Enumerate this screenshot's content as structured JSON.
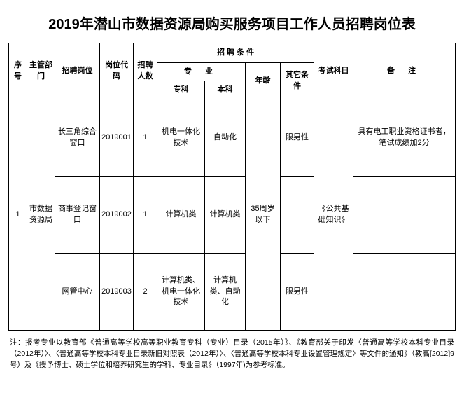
{
  "title": "2019年潜山市数据资源局购买服务项目工作人员招聘岗位表",
  "headers": {
    "seq": "序号",
    "dept": "主管部门",
    "post": "招聘岗位",
    "code": "岗位代码",
    "count": "招聘人数",
    "conditions": "招 聘 条 件",
    "major": "专 业",
    "major_zk": "专科",
    "major_bk": "本科",
    "age": "年龄",
    "other": "其它条件",
    "exam": "考试科目",
    "remark": "备 注"
  },
  "rows": [
    {
      "seq": "1",
      "dept": "市数据资源局",
      "post": "长三角综合窗口",
      "code": "2019001",
      "count": "1",
      "major_zk": "机电一体化技术",
      "major_bk": "自动化",
      "age": "35周岁以下",
      "other": "限男性",
      "exam": "《公共基础知识》",
      "remark": "具有电工职业资格证书者，笔试成绩加2分"
    },
    {
      "post": "商事登记窗口",
      "code": "2019002",
      "count": "1",
      "major_zk": "计算机类",
      "major_bk": "计算机类",
      "other": "",
      "remark": ""
    },
    {
      "post": "网管中心",
      "code": "2019003",
      "count": "2",
      "major_zk": "计算机类、机电一体化技术",
      "major_bk": "计算机类、自动化",
      "other": "限男性",
      "remark": ""
    }
  ],
  "footnote": "注：报考专业以教育部《普通高等学校高等职业教育专科（专业）目录（2015年）》、《教育部关于印发〈普通高等学校本科专业目录（2012年）〉、〈普通高等学校本科专业目录新旧对照表（2012年）〉、〈普通高等学校本科专业设置管理规定〉等文件的通知》（教高[2012]9号）及《授予博士、硕士学位和培养研究生的学科、专业目录》（1997年)为参考标准。"
}
